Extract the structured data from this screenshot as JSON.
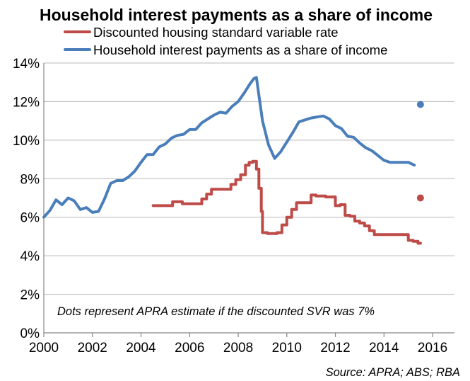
{
  "colors": {
    "svr": "#BE4B48",
    "interest": "#4A7EBB",
    "axis": "#868686",
    "grid": "#B9B9B9"
  },
  "chart_data": {
    "type": "line",
    "title": "Household interest payments as a share of income",
    "xlabel": "",
    "ylabel": "",
    "xlim": [
      2000,
      2016.9
    ],
    "ylim": [
      0,
      14
    ],
    "x_ticks": [
      "2000",
      "2002",
      "2004",
      "2006",
      "2008",
      "2010",
      "2012",
      "2014",
      "2016"
    ],
    "y_ticks": [
      "0%",
      "2%",
      "4%",
      "6%",
      "8%",
      "10%",
      "12%",
      "14%"
    ],
    "grid": true,
    "legend_position": "top",
    "note": "Dots represent APRA estimate if the discounted SVR was 7%",
    "source": "Source:  APRA; ABS; RBA",
    "series": [
      {
        "name": "Discounted housing standard variable rate",
        "color_key": "svr",
        "step": true,
        "x": [
          2004.5,
          2004.7,
          2004.9,
          2005.1,
          2005.3,
          2005.5,
          2005.7,
          2005.9,
          2006.1,
          2006.3,
          2006.5,
          2006.7,
          2006.9,
          2007.1,
          2007.3,
          2007.5,
          2007.7,
          2007.9,
          2008.1,
          2008.3,
          2008.45,
          2008.6,
          2008.65,
          2008.75,
          2008.85,
          2008.95,
          2009.0,
          2009.2,
          2009.4,
          2009.6,
          2009.8,
          2010.0,
          2010.2,
          2010.4,
          2010.6,
          2010.8,
          2011.0,
          2011.2,
          2011.4,
          2011.6,
          2011.8,
          2012.0,
          2012.2,
          2012.4,
          2012.6,
          2012.8,
          2013.0,
          2013.2,
          2013.4,
          2013.6,
          2013.8,
          2014.0,
          2014.2,
          2014.4,
          2014.6,
          2014.8,
          2015.0,
          2015.2,
          2015.4,
          2015.5
        ],
        "values": [
          6.6,
          6.6,
          6.6,
          6.6,
          6.8,
          6.8,
          6.7,
          6.7,
          6.7,
          6.7,
          6.95,
          7.2,
          7.45,
          7.45,
          7.45,
          7.45,
          7.7,
          7.95,
          8.2,
          8.7,
          8.85,
          8.9,
          8.9,
          8.5,
          7.5,
          6.3,
          5.2,
          5.15,
          5.15,
          5.2,
          5.6,
          6.0,
          6.4,
          6.75,
          6.75,
          6.75,
          7.15,
          7.1,
          7.1,
          7.05,
          7.05,
          6.6,
          6.65,
          6.1,
          6.05,
          5.8,
          5.7,
          5.55,
          5.3,
          5.1,
          5.1,
          5.1,
          5.1,
          5.1,
          5.1,
          5.1,
          4.8,
          4.75,
          4.65,
          4.65
        ]
      },
      {
        "name": "Household interest payments as a share of income",
        "color_key": "interest",
        "step": false,
        "x": [
          2000.0,
          2000.25,
          2000.5,
          2000.75,
          2001.0,
          2001.25,
          2001.5,
          2001.75,
          2002.0,
          2002.25,
          2002.5,
          2002.75,
          2003.0,
          2003.25,
          2003.5,
          2003.75,
          2004.0,
          2004.25,
          2004.5,
          2004.75,
          2005.0,
          2005.25,
          2005.5,
          2005.75,
          2006.0,
          2006.25,
          2006.5,
          2006.75,
          2007.0,
          2007.25,
          2007.5,
          2007.75,
          2008.0,
          2008.25,
          2008.5,
          2008.65,
          2008.75,
          2009.0,
          2009.25,
          2009.5,
          2009.75,
          2010.0,
          2010.25,
          2010.5,
          2010.75,
          2011.0,
          2011.25,
          2011.5,
          2011.75,
          2012.0,
          2012.25,
          2012.5,
          2012.75,
          2013.0,
          2013.25,
          2013.5,
          2013.75,
          2014.0,
          2014.25,
          2014.5,
          2014.75,
          2015.0,
          2015.25
        ],
        "values": [
          6.0,
          6.35,
          6.9,
          6.65,
          7.0,
          6.85,
          6.4,
          6.5,
          6.25,
          6.3,
          6.95,
          7.75,
          7.9,
          7.9,
          8.1,
          8.4,
          8.85,
          9.25,
          9.25,
          9.65,
          9.8,
          10.1,
          10.25,
          10.3,
          10.55,
          10.55,
          10.9,
          11.1,
          11.3,
          11.45,
          11.4,
          11.75,
          12.0,
          12.45,
          12.95,
          13.2,
          13.25,
          11.0,
          9.75,
          9.05,
          9.4,
          9.9,
          10.4,
          10.95,
          11.05,
          11.15,
          11.2,
          11.25,
          11.1,
          10.75,
          10.6,
          10.2,
          10.15,
          9.85,
          9.6,
          9.45,
          9.2,
          8.95,
          8.85,
          8.85,
          8.85,
          8.85,
          8.7
        ]
      }
    ],
    "dots": [
      {
        "series": "Household interest payments as a share of income",
        "color_key": "interest",
        "x": 2015.5,
        "value": 11.85
      },
      {
        "series": "Discounted housing standard variable rate",
        "color_key": "svr",
        "x": 2015.5,
        "value": 7.0
      }
    ]
  }
}
